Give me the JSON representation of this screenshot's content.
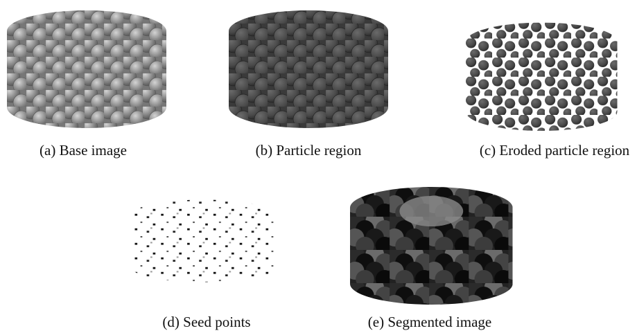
{
  "panels": [
    {
      "caption": "(a) Base image"
    },
    {
      "caption": "(b) Particle region"
    },
    {
      "caption": "(c) Eroded particle region"
    },
    {
      "caption": "(d) Seed points"
    },
    {
      "caption": "(e) Segmented image"
    }
  ]
}
